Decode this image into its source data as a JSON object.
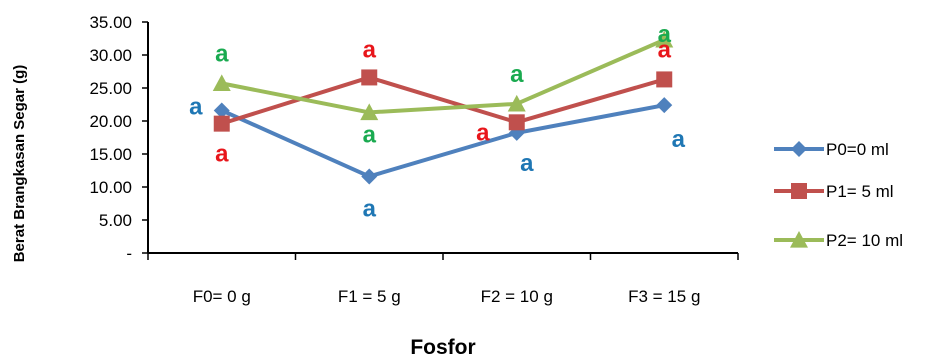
{
  "chart_data": {
    "type": "line",
    "categories": [
      "F0= 0  g",
      "F1 = 5 g",
      "F2 = 10 g",
      "F3 = 15 g"
    ],
    "ylabel": "Berat Brangkasan Segar (g)",
    "xlabel": "Fosfor",
    "ylim": [
      0,
      35
    ],
    "yticks": [
      "-",
      "5.00",
      "10.00",
      "15.00",
      "20.00",
      "25.00",
      "30.00",
      "35.00"
    ],
    "ytick_values": [
      0,
      5,
      10,
      15,
      20,
      25,
      30,
      35
    ],
    "grid": false,
    "legend_position": "right",
    "series": [
      {
        "name": "P0=0 ml",
        "values": [
          21.6,
          11.6,
          18.2,
          22.4
        ],
        "color": "#4F81BD",
        "marker": "diamond",
        "annotations": [
          "a",
          "a",
          "a",
          "a"
        ]
      },
      {
        "name": "P1= 5 ml",
        "values": [
          19.6,
          26.6,
          19.8,
          26.3
        ],
        "color": "#C0504D",
        "marker": "square",
        "annotations": [
          "a",
          "a",
          "a",
          "a"
        ]
      },
      {
        "name": "P2= 10 ml",
        "values": [
          25.7,
          21.3,
          22.6,
          32.3
        ],
        "color": "#9BBB59",
        "marker": "triangle",
        "annotations": [
          "a",
          "a",
          "a",
          "a"
        ]
      }
    ],
    "annotation_colors": {
      "P0": "#1F77B4",
      "P1": "#E8161B",
      "P2": "#1AAA50"
    }
  }
}
